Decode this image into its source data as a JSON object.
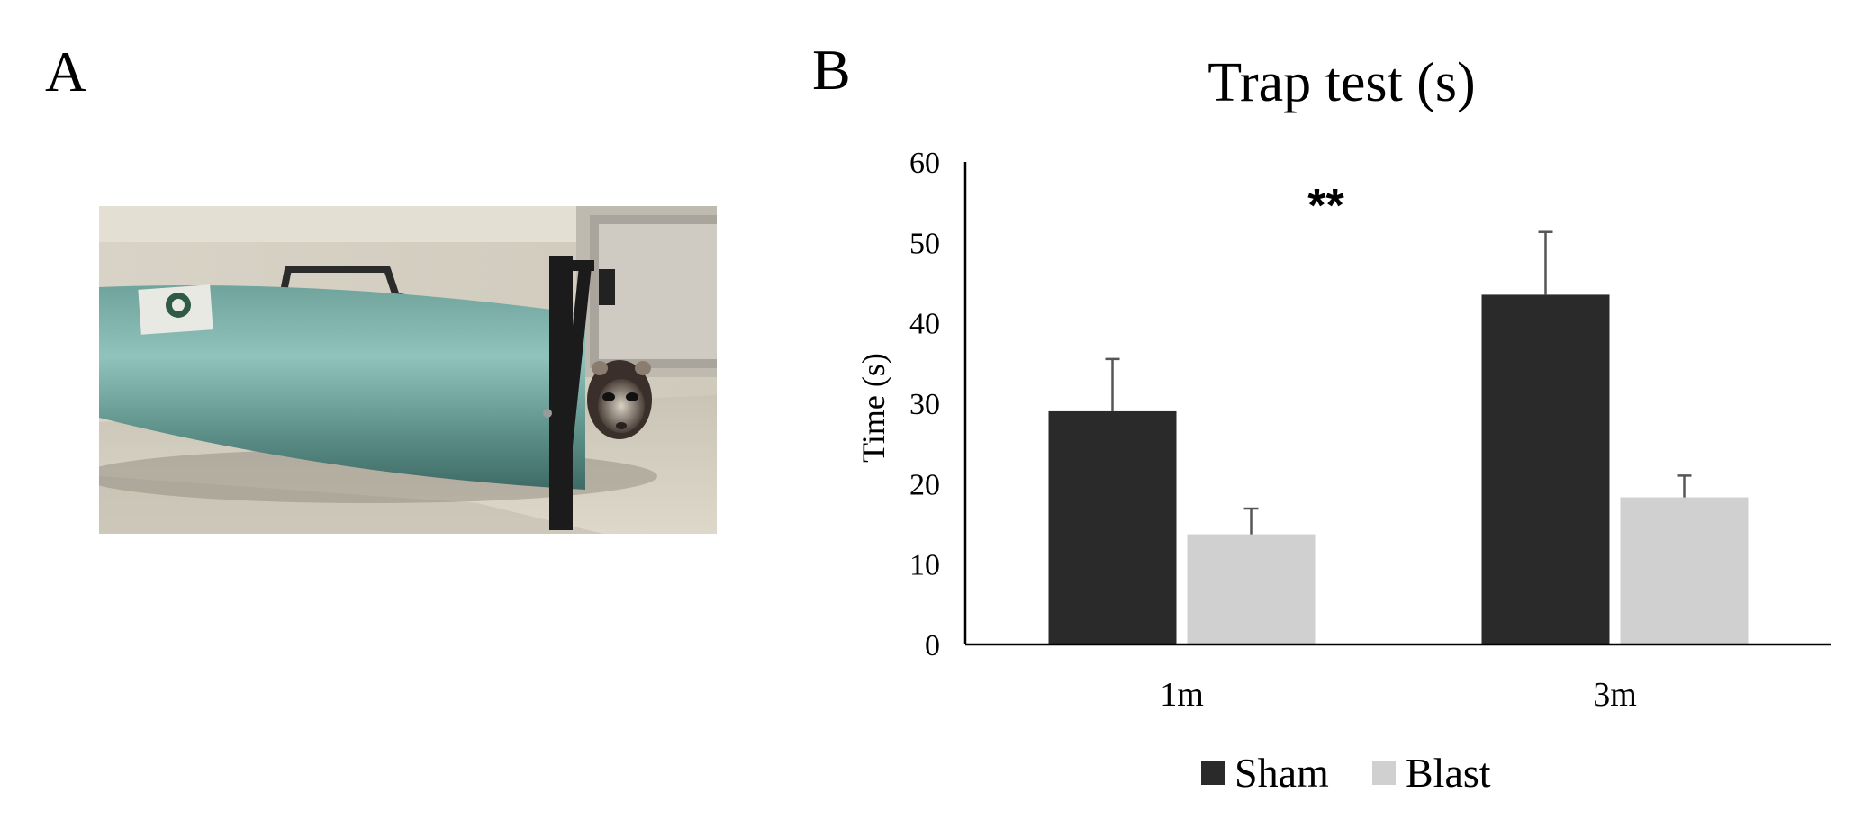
{
  "panels": {
    "a_label": "A",
    "b_label": "B"
  },
  "photo": {
    "description_icon": "ferret-trap-photo"
  },
  "chart_data": {
    "type": "bar",
    "title": "Trap test (s)",
    "xlabel": "",
    "ylabel": "Time (s)",
    "categories": [
      "1m",
      "3m"
    ],
    "ylim": [
      0,
      60
    ],
    "yticks": [
      0,
      10,
      20,
      30,
      40,
      50,
      60
    ],
    "ytick_labels": [
      "0",
      "10",
      "20",
      "30",
      "40",
      "50",
      "60"
    ],
    "grid": false,
    "legend_position": "bottom",
    "series": [
      {
        "name": "Sham",
        "values": [
          29,
          43.5
        ],
        "errors": [
          6.5,
          7.8
        ],
        "color": "#2a2a2a"
      },
      {
        "name": "Blast",
        "values": [
          13.7,
          18.3
        ],
        "errors": [
          3.2,
          2.7
        ],
        "color": "#d0d0d0"
      }
    ],
    "annotations": [
      {
        "text": "**",
        "category": "1m"
      }
    ]
  }
}
